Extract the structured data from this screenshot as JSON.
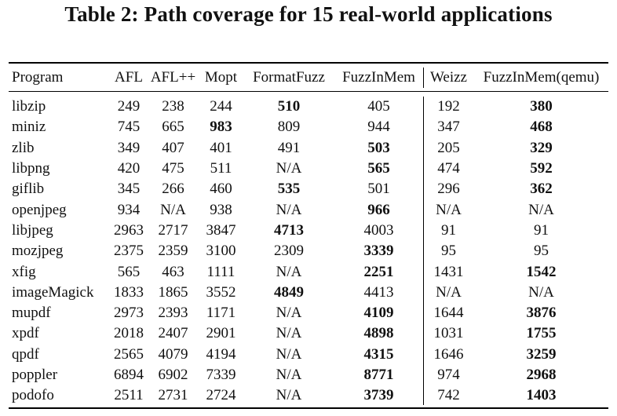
{
  "caption": "Table 2: Path coverage for 15 real-world applications",
  "columns": [
    "Program",
    "AFL",
    "AFL++",
    "Mopt",
    "FormatFuzz",
    "FuzzInMem",
    "Weizz",
    "FuzzInMem(qemu)"
  ],
  "rows": [
    {
      "cells": [
        "libzip",
        "249",
        "238",
        "244",
        "510",
        "405",
        "192",
        "380"
      ],
      "bold": [
        4,
        7
      ]
    },
    {
      "cells": [
        "miniz",
        "745",
        "665",
        "983",
        "809",
        "944",
        "347",
        "468"
      ],
      "bold": [
        3,
        7
      ]
    },
    {
      "cells": [
        "zlib",
        "349",
        "407",
        "401",
        "491",
        "503",
        "205",
        "329"
      ],
      "bold": [
        5,
        7
      ]
    },
    {
      "cells": [
        "libpng",
        "420",
        "475",
        "511",
        "N/A",
        "565",
        "474",
        "592"
      ],
      "bold": [
        5,
        7
      ]
    },
    {
      "cells": [
        "giflib",
        "345",
        "266",
        "460",
        "535",
        "501",
        "296",
        "362"
      ],
      "bold": [
        4,
        7
      ]
    },
    {
      "cells": [
        "openjpeg",
        "934",
        "N/A",
        "938",
        "N/A",
        "966",
        "N/A",
        "N/A"
      ],
      "bold": [
        5
      ]
    },
    {
      "cells": [
        "libjpeg",
        "2963",
        "2717",
        "3847",
        "4713",
        "4003",
        "91",
        "91"
      ],
      "bold": [
        4
      ]
    },
    {
      "cells": [
        "mozjpeg",
        "2375",
        "2359",
        "3100",
        "2309",
        "3339",
        "95",
        "95"
      ],
      "bold": [
        5
      ]
    },
    {
      "cells": [
        "xfig",
        "565",
        "463",
        "1111",
        "N/A",
        "2251",
        "1431",
        "1542"
      ],
      "bold": [
        5,
        7
      ]
    },
    {
      "cells": [
        "imageMagick",
        "1833",
        "1865",
        "3552",
        "4849",
        "4413",
        "N/A",
        "N/A"
      ],
      "bold": [
        4
      ]
    },
    {
      "cells": [
        "mupdf",
        "2973",
        "2393",
        "1171",
        "N/A",
        "4109",
        "1644",
        "3876"
      ],
      "bold": [
        5,
        7
      ]
    },
    {
      "cells": [
        "xpdf",
        "2018",
        "2407",
        "2901",
        "N/A",
        "4898",
        "1031",
        "1755"
      ],
      "bold": [
        5,
        7
      ]
    },
    {
      "cells": [
        "qpdf",
        "2565",
        "4079",
        "4194",
        "N/A",
        "4315",
        "1646",
        "3259"
      ],
      "bold": [
        5,
        7
      ]
    },
    {
      "cells": [
        "poppler",
        "6894",
        "6902",
        "7339",
        "N/A",
        "8771",
        "974",
        "2968"
      ],
      "bold": [
        5,
        7
      ]
    },
    {
      "cells": [
        "podofo",
        "2511",
        "2731",
        "2724",
        "N/A",
        "3739",
        "742",
        "1403"
      ],
      "bold": [
        5,
        7
      ]
    }
  ]
}
